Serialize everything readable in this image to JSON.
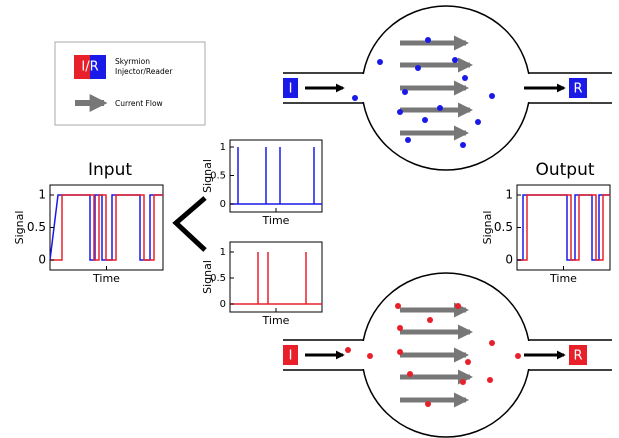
{
  "legend": {
    "icon": "I/R",
    "items": [
      {
        "lines": [
          "Skyrmion",
          "Injector/Reader"
        ]
      },
      {
        "lines": [
          "Current Flow"
        ]
      }
    ]
  },
  "plots": [
    {
      "title": "Input",
      "y_label": "Signal",
      "x_label": "Time",
      "y_ticks": [
        1,
        0.5,
        0
      ]
    },
    {
      "y_label": "Signal",
      "x_label": "Time",
      "y_ticks": [
        1,
        0.5,
        0
      ]
    },
    {
      "y_label": "Signal",
      "x_label": "Time",
      "y_ticks": [
        1,
        0.5,
        0
      ]
    },
    {
      "title": "Output",
      "y_label": "Signal",
      "x_label": "Time",
      "y_ticks": [
        1,
        0.5,
        0
      ]
    }
  ],
  "devices": [
    {
      "injector": "I",
      "reader": "R"
    },
    {
      "injector": "I",
      "reader": "R"
    }
  ]
}
